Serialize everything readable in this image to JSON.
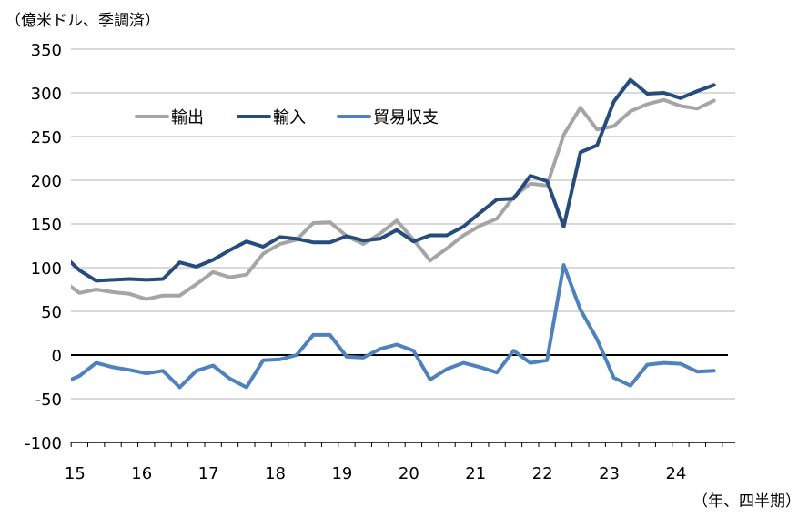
{
  "chart_data": {
    "type": "line",
    "title": "",
    "ylabel": "（億米ドル、季調済）",
    "xlabel": "（年、四半期）",
    "ylim": [
      -100,
      350
    ],
    "yticks": [
      350,
      300,
      250,
      200,
      150,
      100,
      50,
      0,
      -50,
      -100
    ],
    "x_tick_labels": [
      "15",
      "16",
      "17",
      "18",
      "19",
      "20",
      "21",
      "22",
      "23",
      "24"
    ],
    "x_period": "quarterly, 2014Q4 to 2024Q3",
    "grid": true,
    "legend_position": "top-left",
    "series": [
      {
        "name": "輸出",
        "color": "#a5a5a5",
        "values": [
          85,
          71,
          75,
          72,
          70,
          64,
          68,
          68,
          81,
          95,
          89,
          92,
          116,
          127,
          132,
          151,
          152,
          136,
          127,
          139,
          154,
          132,
          108,
          122,
          137,
          148,
          156,
          181,
          196,
          194,
          252,
          283,
          258,
          262,
          279,
          287,
          292,
          285,
          282,
          291
        ]
      },
      {
        "name": "輸入",
        "color": "#264b7d",
        "values": [
          115,
          97,
          85,
          86,
          87,
          86,
          87,
          106,
          101,
          109,
          120,
          130,
          124,
          135,
          133,
          129,
          129,
          136,
          131,
          133,
          143,
          130,
          137,
          137,
          147,
          163,
          178,
          179,
          205,
          199,
          147,
          232,
          240,
          290,
          315,
          299,
          300,
          294,
          302,
          309
        ]
      },
      {
        "name": "貿易収支",
        "color": "#4f81bd",
        "values": [
          -32,
          -24,
          -9,
          -14,
          -17,
          -21,
          -18,
          -37,
          -18,
          -12,
          -27,
          -37,
          -6,
          -5,
          0,
          23,
          23,
          -2,
          -3,
          7,
          12,
          5,
          -28,
          -16,
          -9,
          -14,
          -20,
          5,
          -9,
          -6,
          103,
          52,
          18,
          -26,
          -35,
          -11,
          -9,
          -10,
          -19,
          -18
        ]
      }
    ]
  }
}
